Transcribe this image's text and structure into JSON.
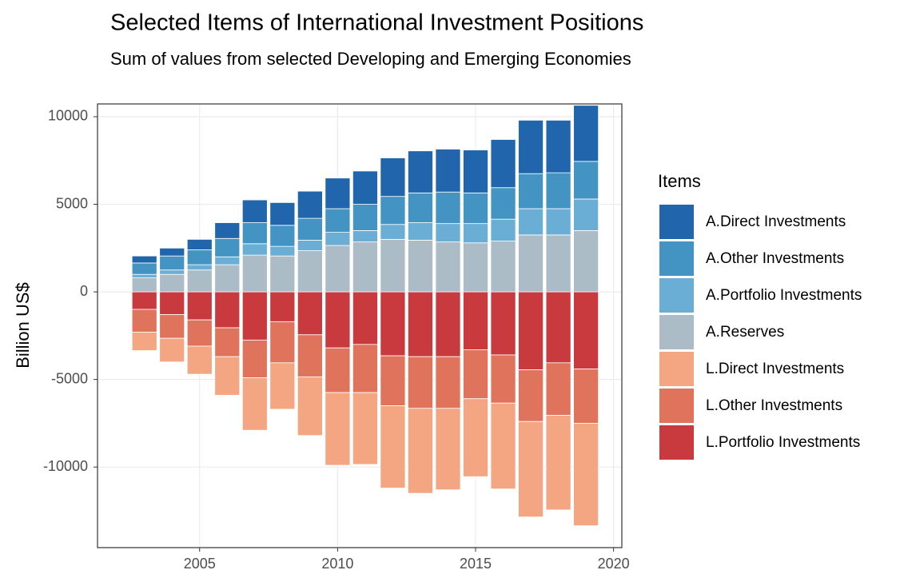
{
  "chart_data": {
    "type": "stacked_bar",
    "title": "Selected Items of International Investment Positions",
    "subtitle": "Sum of values from selected Developing and Emerging Economies",
    "y_label": "Billion US$",
    "legend_title": "Items",
    "x": [
      2003,
      2004,
      2005,
      2006,
      2007,
      2008,
      2009,
      2010,
      2011,
      2012,
      2013,
      2014,
      2015,
      2016,
      2017,
      2018,
      2019
    ],
    "series": [
      {
        "name": "A.Direct Investments",
        "color": "#2166ac",
        "values": [
          400,
          450,
          600,
          900,
          1300,
          1300,
          1550,
          1750,
          1900,
          2200,
          2400,
          2450,
          2450,
          2750,
          3050,
          3000,
          3200
        ]
      },
      {
        "name": "A.Other Investments",
        "color": "#4393c3",
        "values": [
          650,
          800,
          850,
          1050,
          1200,
          1200,
          1250,
          1350,
          1500,
          1600,
          1700,
          1800,
          1750,
          1800,
          2000,
          2050,
          2150
        ]
      },
      {
        "name": "A.Portfolio Investments",
        "color": "#6aaed6",
        "values": [
          200,
          250,
          300,
          450,
          650,
          550,
          600,
          750,
          650,
          850,
          1000,
          1050,
          1100,
          1250,
          1500,
          1500,
          1800
        ]
      },
      {
        "name": "A.Reserves",
        "color": "#abbcc7",
        "values": [
          800,
          1000,
          1250,
          1550,
          2100,
          2050,
          2350,
          2650,
          2850,
          3000,
          2950,
          2850,
          2800,
          2900,
          3250,
          3250,
          3500
        ]
      },
      {
        "name": "L.Direct Investments",
        "color": "#f4a582",
        "values": [
          -1050,
          -1350,
          -1600,
          -2200,
          -3000,
          -2650,
          -3350,
          -4150,
          -4100,
          -4700,
          -4850,
          -4650,
          -4450,
          -4900,
          -5450,
          -5400,
          -5850
        ]
      },
      {
        "name": "L.Other Investments",
        "color": "#df735c",
        "values": [
          -1300,
          -1350,
          -1500,
          -1650,
          -2150,
          -2350,
          -2400,
          -2550,
          -2750,
          -2850,
          -2950,
          -2950,
          -2800,
          -2750,
          -2950,
          -3000,
          -3100
        ]
      },
      {
        "name": "L.Portfolio Investments",
        "color": "#c93a3e",
        "values": [
          -1000,
          -1300,
          -1600,
          -2050,
          -2750,
          -1700,
          -2450,
          -3200,
          -3000,
          -3650,
          -3700,
          -3700,
          -3300,
          -3600,
          -4450,
          -4050,
          -4400
        ]
      }
    ],
    "xlim": [
      2001.3,
      2020.3
    ],
    "xticks": [
      2005,
      2010,
      2015,
      2020
    ],
    "ylim": [
      -14600,
      10730
    ],
    "yticks": [
      -10000,
      -5000,
      0,
      5000,
      10000
    ],
    "grid": true,
    "legend_position": "right"
  }
}
